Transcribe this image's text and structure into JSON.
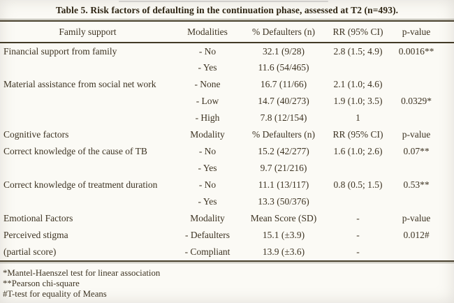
{
  "title": "Table 5. Risk factors of defaulting in the continuation phase, assessed at T2 (n=493).",
  "table": {
    "header": [
      "Family support",
      "Modalities",
      "% Defaulters (n)",
      "RR (95% CI)",
      "p-value"
    ],
    "rows": [
      {
        "factor": "Financial support from family",
        "modality": "- No",
        "defaulters": "32.1 (9/28)",
        "rr": "2.8 (1.5; 4.9)",
        "p": "0.0016**"
      },
      {
        "factor": "",
        "modality": "- Yes",
        "defaulters": "11.6 (54/465)",
        "rr": "",
        "p": ""
      },
      {
        "factor": "Material assistance from social net work",
        "modality": "- None",
        "defaulters": "16.7 (11/66)",
        "rr": "2.1 (1.0; 4.6)",
        "p": ""
      },
      {
        "factor": "",
        "modality": "- Low",
        "defaulters": "14.7 (40/273)",
        "rr": "1.9 (1.0; 3.5)",
        "p": "0.0329*"
      },
      {
        "factor": "",
        "modality": "- High",
        "defaulters": "7.8 (12/154)",
        "rr": "1",
        "p": ""
      },
      {
        "factor": "Cognitive factors",
        "modality": "Modality",
        "defaulters": "% Defaulters (n)",
        "rr": "RR (95% CI)",
        "p": "p-value"
      },
      {
        "factor": "Correct knowledge of the cause of TB",
        "modality": "- No",
        "defaulters": "15.2 (42/277)",
        "rr": "1.6 (1.0; 2.6)",
        "p": "0.07**"
      },
      {
        "factor": "",
        "modality": "- Yes",
        "defaulters": "9.7 (21/216)",
        "rr": "",
        "p": ""
      },
      {
        "factor": "Correct knowledge of treatment duration",
        "modality": "- No",
        "defaulters": "11.1 (13/117)",
        "rr": "0.8 (0.5; 1.5)",
        "p": "0.53**"
      },
      {
        "factor": "",
        "modality": "- Yes",
        "defaulters": "13.3 (50/376)",
        "rr": "",
        "p": ""
      },
      {
        "factor": "Emotional Factors",
        "modality": "Modality",
        "defaulters": "Mean Score (SD)",
        "rr": "-",
        "p": "p-value"
      },
      {
        "factor": "Perceived stigma",
        "modality": "- Defaulters",
        "defaulters": "15.1 (±3.9)",
        "rr": "-",
        "p": "0.012#"
      },
      {
        "factor": "(partial score)",
        "modality": "- Compliant",
        "defaulters": "13.9 (±3.6)",
        "rr": "-",
        "p": ""
      }
    ],
    "footnotes": [
      "*Mantel-Haenszel test for linear association",
      "**Pearson chi-square",
      "#T-test for equality of Means"
    ]
  }
}
